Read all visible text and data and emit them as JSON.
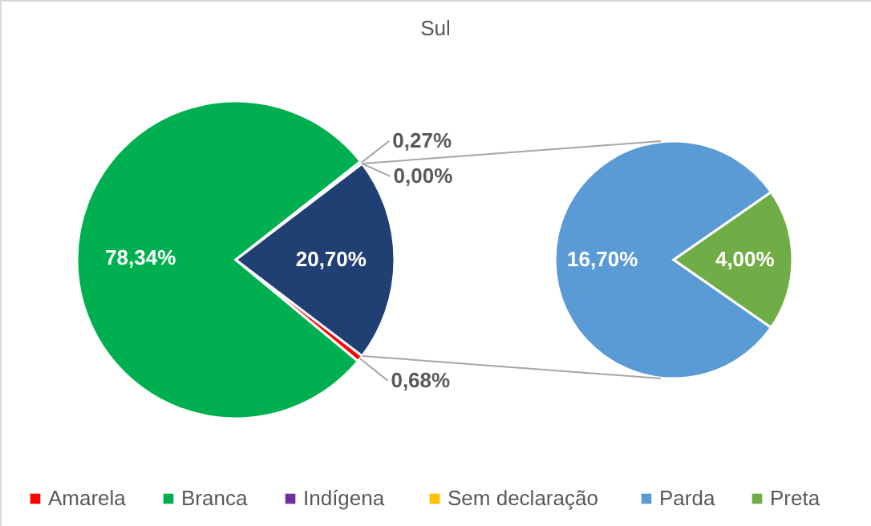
{
  "chart_data": [
    {
      "type": "pie",
      "title": "Sul",
      "categories": [
        "Amarela",
        "Branca",
        "Indígena",
        "Sem declaração",
        null
      ],
      "values": [
        0.68,
        78.34,
        0.27,
        0.0,
        20.7
      ],
      "colors": [
        "#ff0000",
        "#00b050",
        "#7030a0",
        "#ffc000",
        "#203f73"
      ],
      "value_labels": [
        "0,68%",
        "78,34%",
        "0,27%",
        "0,00%",
        "20,70%"
      ],
      "legend": "bottom"
    },
    {
      "type": "pie",
      "categories": [
        "Parda",
        "Preta"
      ],
      "values": [
        16.7,
        4.0
      ],
      "colors": [
        "#5b9bd5",
        "#70ad47"
      ],
      "value_labels": [
        "16,70%",
        "4,00%"
      ],
      "legend": "bottom"
    }
  ]
}
